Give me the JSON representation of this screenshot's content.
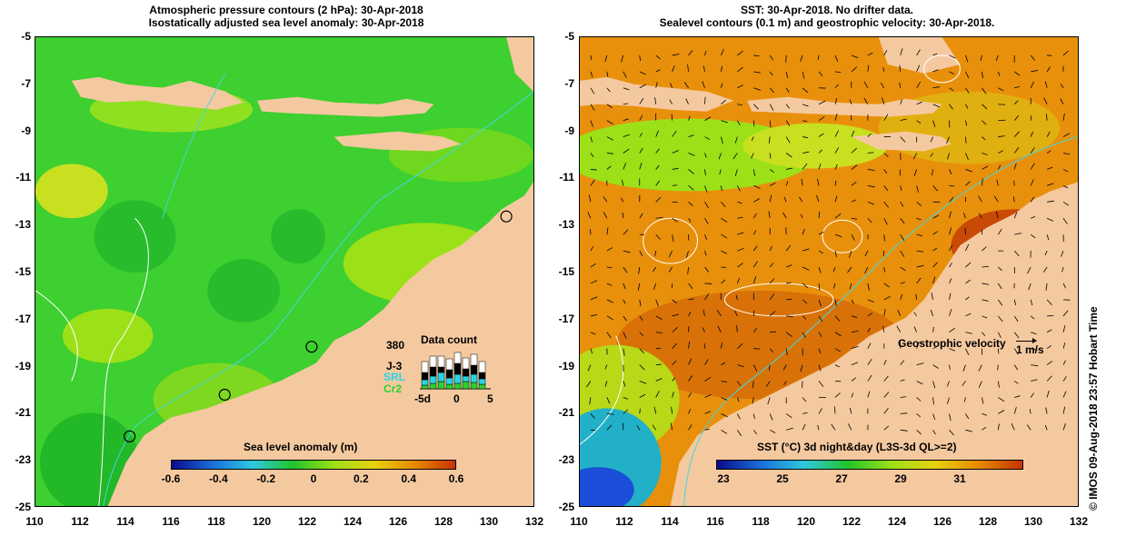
{
  "left_panel": {
    "title_line1": "Atmospheric pressure contours (2 hPa): 30-Apr-2018",
    "title_line2": "Isostatically adjusted sea level anomaly: 30-Apr-2018",
    "colorbar_label": "Sea level anomaly (m)",
    "colorbar_ticks": [
      "-0.6",
      "-0.4",
      "-0.2",
      "0",
      "0.2",
      "0.4",
      "0.6"
    ],
    "colorbar_colors": [
      "#0a0a8a",
      "#1a6ed8",
      "#2fc8e0",
      "#22c42a",
      "#9ce018",
      "#e8d010",
      "#e68a00",
      "#c83200"
    ],
    "data_count": {
      "title": "Data count",
      "max_label": "380",
      "series_labels": [
        "J-3",
        "SRL",
        "Cr2"
      ],
      "series_colors": [
        "#000000",
        "#27d6e6",
        "#2cd12c"
      ],
      "x_ticks": [
        "-5d",
        "0",
        "5"
      ]
    }
  },
  "right_panel": {
    "title_line1": "SST: 30-Apr-2018. No drifter data.",
    "title_line2": "Sealevel contours (0.1 m) and geostrophic velocity: 30-Apr-2018.",
    "velocity_legend": "Geostrophic velocity",
    "velocity_scale": "1 m/s",
    "colorbar_label": "SST (°C) 3d night&day (L3S-3d QL>=2)",
    "colorbar_ticks": [
      "23",
      "25",
      "27",
      "29",
      "31"
    ],
    "colorbar_colors": [
      "#0a0a8a",
      "#1a6ed8",
      "#2fc8e0",
      "#22c42a",
      "#9ce018",
      "#e8d010",
      "#e68a00",
      "#c83200"
    ]
  },
  "y_axis_ticks": [
    "-5",
    "-7",
    "-9",
    "-11",
    "-13",
    "-15",
    "-17",
    "-19",
    "-21",
    "-23",
    "-25"
  ],
  "x_axis_ticks": [
    "110",
    "112",
    "114",
    "116",
    "118",
    "120",
    "122",
    "124",
    "126",
    "128",
    "130",
    "132"
  ],
  "side_text": "© IMOS 09-Aug-2018 23:57 Hobart Time",
  "colors": {
    "land": "#f5c9a0",
    "ocean_left": "#3ecf30",
    "ocean_right": "#e8900c",
    "contour": "#ffffff",
    "bathymetry": "#40d8e0"
  }
}
